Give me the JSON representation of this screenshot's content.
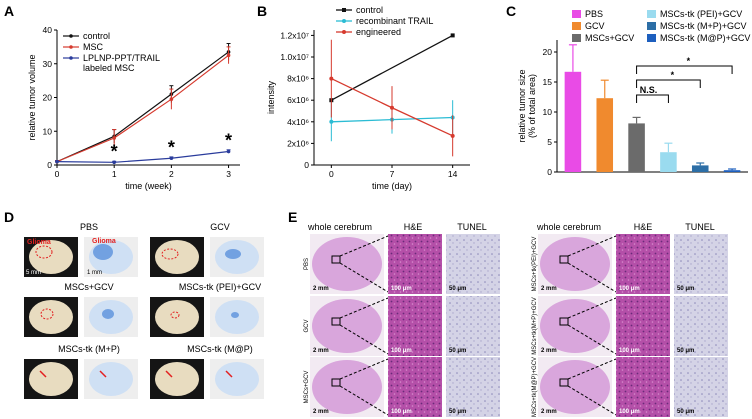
{
  "chart_data": [
    {
      "panel": "A",
      "type": "line",
      "xlabel": "time (week)",
      "ylabel": "relative tumor volume",
      "x": [
        0,
        1,
        2,
        3
      ],
      "xticks": [
        "0",
        "1",
        "2",
        "3"
      ],
      "yticks": [
        "0",
        "10",
        "20",
        "30",
        "40"
      ],
      "xlim": [
        0,
        3.2
      ],
      "ylim": [
        0,
        40
      ],
      "legend_position": "top-left",
      "series": [
        {
          "name": "control",
          "color": "#111111",
          "values": [
            1,
            8.5,
            21,
            33.5
          ],
          "errors": [
            0.3,
            2.0,
            2.5,
            2.5
          ]
        },
        {
          "name": "MSC",
          "color": "#d63a2e",
          "values": [
            1,
            8,
            19.5,
            32.5
          ],
          "errors": [
            0.3,
            2.5,
            3.0,
            2.5
          ]
        },
        {
          "name": "LPLNP-PPT/TRAIL labeled MSC",
          "color": "#2a3c9c",
          "values": [
            1,
            0.8,
            2,
            4
          ],
          "errors": [
            0.2,
            0.3,
            0.4,
            0.5
          ]
        }
      ],
      "annotations": [
        "*",
        "*",
        "*"
      ]
    },
    {
      "panel": "B",
      "type": "line",
      "xlabel": "time (day)",
      "ylabel": "intensity",
      "x": [
        0,
        7,
        14
      ],
      "xticks": [
        "0",
        "7",
        "14"
      ],
      "yticks": [
        "0",
        "2x10⁶",
        "4x10⁶",
        "6x10⁶",
        "8x10⁶",
        "1.0x10⁷",
        "1.2x10⁷"
      ],
      "ylim": [
        0,
        12500000
      ],
      "legend_position": "top",
      "series": [
        {
          "name": "control",
          "color": "#111111",
          "values": [
            6000000,
            null,
            12000000
          ],
          "errors": [
            0,
            0,
            0
          ]
        },
        {
          "name": "recombinant TRAIL",
          "color": "#2bbcd4",
          "values": [
            4000000,
            4200000,
            4400000
          ],
          "errors": [
            1800000,
            1300000,
            1600000
          ]
        },
        {
          "name": "engineered",
          "color": "#d63a2e",
          "values": [
            8000000,
            5300000,
            2700000
          ],
          "errors": [
            3600000,
            2000000,
            1900000
          ]
        }
      ]
    },
    {
      "panel": "C",
      "type": "bar",
      "ylabel": "relative tumor size",
      "ylabel2": "(% of total area)",
      "yticks": [
        "0",
        "5",
        "10",
        "15",
        "20"
      ],
      "ylim": [
        0,
        22
      ],
      "categories": [
        "PBS",
        "GCV",
        "MSCs+GCV",
        "MSCs-tk (PEI)+GCV",
        "MSCs-tk (M+P)+GCV",
        "MSCs-tk (M@P)+GCV"
      ],
      "values": [
        16.7,
        12.3,
        8.1,
        3.3,
        1.1,
        0.3
      ],
      "errors": [
        4.5,
        3.0,
        1.0,
        1.5,
        0.4,
        0.2
      ],
      "colors": [
        "#e94be6",
        "#f08a2e",
        "#6b6b6b",
        "#9adbef",
        "#2c6ea6",
        "#1d5fbe"
      ],
      "significance": [
        "N.S.",
        "*",
        "*"
      ]
    }
  ],
  "panel_letters": {
    "a": "A",
    "b": "B",
    "c": "C",
    "d": "D",
    "e": "E"
  },
  "panel_d": {
    "labels": [
      "PBS",
      "GCV",
      "MSCs+GCV",
      "MSCs-tk (PEI)+GCV",
      "MSCs-tk (M+P)",
      "MSCs-tk (M@P)"
    ],
    "glioma_label": "Glioma",
    "scale_5mm": "5 mm",
    "scale_1mm": "1 mm"
  },
  "panel_e": {
    "col_headers": [
      "whole cerebrum",
      "H&E",
      "TUNEL",
      "whole cerebrum",
      "H&E",
      "TUNEL"
    ],
    "row_labels_left": [
      "PBS",
      "GCV",
      "MSCs+GCV"
    ],
    "row_labels_right": [
      "MSCs+tk(PEI)+GCV",
      "MSCs+tk(M+P)+GCV",
      "MSCs+tk(M@P)+GCV"
    ],
    "scale_2mm": "2 mm",
    "scale_100um": "100 μm",
    "scale_50um": "50 μm"
  }
}
